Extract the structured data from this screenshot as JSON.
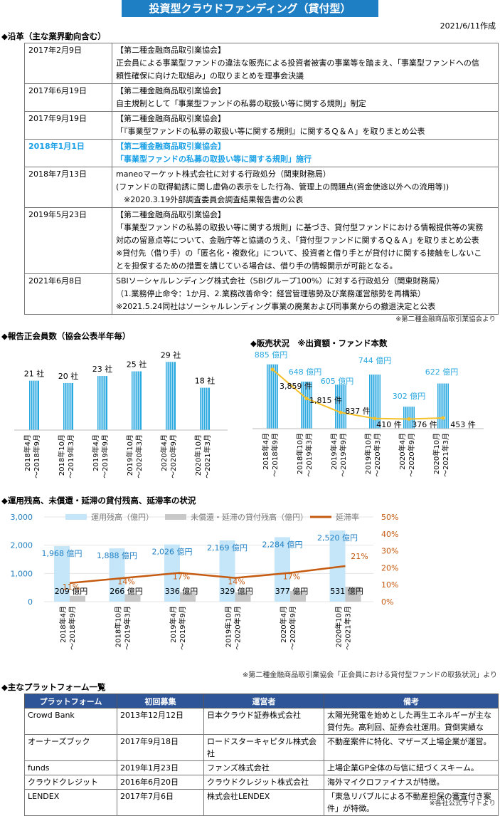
{
  "header": {
    "title": "投資型クラウドファンディング（貸付型）",
    "date": "2021/6/11作成"
  },
  "history": {
    "section_title": "◆沿革（主な業界動向含む）",
    "rows": [
      {
        "date": "2017年2月9日",
        "lines": [
          "【第二種金融商品取引業協会】",
          "正会員による事業型ファンドの違法な販売による投資者被害の事業等を踏まえ、「事業型ファンドへの信",
          "頼性確保に向けた取組み」の取りまとめを理事会決議"
        ]
      },
      {
        "date": "2017年6月19日",
        "lines": [
          "【第二種金融商品取引業協会】",
          "自主規制として「事業型ファンドの私募の取扱い等に関する規則」制定"
        ]
      },
      {
        "date": "2017年9月19日",
        "lines": [
          "【第二種金融商品取引業協会】",
          "「『事業型ファンドの私募の取扱い等に関する規則』に関するＱ＆Ａ」を取りまとめ公表"
        ]
      },
      {
        "date": "2018年1月1日",
        "lines": [
          "【第二種金融商品取引業協会】",
          "「事業型ファンドの私募の取扱い等に関する規則」施行"
        ],
        "highlight": true
      },
      {
        "date": "2018年7月13日",
        "lines": [
          "maneoマーケット株式会社に対する行政処分（関東財務局）",
          "(ファンドの取得勧誘に関し虚偽の表示をした行為、管理上の問題点(資金使途以外への流用等))",
          "　※2020.3.19外部調査委員会調査結果報告書の公表"
        ]
      },
      {
        "date": "2019年5月23日",
        "lines": [
          "【第二種金融商品取引業協会】",
          "「事業型ファンドの私募の取扱い等に関する規則」に基づき、貸付型ファンドにおける情報提供等の実務",
          "対応の留意点等について、金融庁等と協議のうえ、「貸付型ファンドに関するＱ＆Ａ」を取りまとめ公表",
          "※貸付先（借り手）の「匿名化・複数化」について、投資者と借り手とが貸付けに関する接触をしないこ",
          "とを担保するための措置を講じている場合は、借り手の情報開示が可能となる。"
        ]
      },
      {
        "date": "2021年6月8日",
        "lines": [
          "SBIソーシャルレンディング株式会社（SBIグループ100%）に対する行政処分（関東財務局）",
          "（1.業務停止命令：1か月、2.業務改善命令：経営管理態勢及び業務運営態勢を再構築）",
          "※2021.5.24同社はソーシャルレンディング事業の廃業および同事業からの撤退決定と公表"
        ]
      }
    ],
    "source": "※第二種金融商品取引業協会より"
  },
  "members_chart": {
    "section_title": "◆報告正会員数（協会公表半年毎）",
    "chart_data": {
      "type": "bar",
      "categories": [
        "2018年4月\n～2018年9月",
        "2018年10月\n～2019年3月",
        "2019年4月\n～2019年9月",
        "2019年10月\n～2020年3月",
        "2020年4月\n～2020年9月",
        "2020年10月\n～2021年3月"
      ],
      "values": [
        21,
        20,
        23,
        25,
        29,
        18
      ],
      "value_labels": [
        "21 社",
        "20 社",
        "23 社",
        "25 社",
        "29 社",
        "18 社"
      ],
      "bar_color": "#29A8E0"
    }
  },
  "sales_chart": {
    "section_title": "◆販売状況　※出資額・ファンド本数",
    "chart_data": {
      "type": "bar",
      "categories": [
        "2018年4月\n～2018年9月",
        "2018年10月\n～2019年3月",
        "2019年4月\n～2019年9月",
        "2019年10月\n～2020年3月",
        "2020年4月\n～2020年9月",
        "2020年10月\n～2021年3月"
      ],
      "series": [
        {
          "values": [
            885,
            648,
            605,
            744,
            302,
            622
          ],
          "labels": [
            "885 億円",
            "648 億円",
            "605 億円",
            "744 億円",
            "302 億円",
            "622 億円"
          ],
          "color": "#29A8E0"
        },
        {
          "values": [
            3859,
            1815,
            837,
            410,
            376,
            453
          ],
          "labels": [
            "3,859 件",
            "1,815 件",
            "837 件",
            "410 件",
            "376 件",
            "453 件"
          ],
          "color": "#F5C12B"
        }
      ]
    }
  },
  "balance_chart": {
    "section_title": "◆運用残高、未償還・延滞の貸付残高、延滞率の状況",
    "chart_data": {
      "type": "bar",
      "categories": [
        "2018年4月\n～2018年9月",
        "2018年10月\n～2019年3月",
        "2019年4月\n～2019年9月",
        "2019年10月\n～2020年3月",
        "2020年4月\n～2020年9月",
        "2020年10月\n～2021年3月"
      ],
      "series": [
        {
          "name": "運用残高（億円）",
          "values": [
            1968,
            1888,
            2026,
            2169,
            2284,
            2520
          ],
          "labels": [
            "1,968 億円",
            "1,888 億円",
            "2,026 億円",
            "2,169 億円",
            "2,284 億円",
            "2,520 億円"
          ],
          "color": "#C5E6F8"
        },
        {
          "name": "未償還・延滞の貸付残高（億円）",
          "values": [
            209,
            266,
            336,
            329,
            377,
            531
          ],
          "labels": [
            "209 億円",
            "266 億円",
            "336 億円",
            "329 億円",
            "377 億円",
            "531 億円"
          ],
          "color": "#C8C8C8"
        },
        {
          "name": "延滞率",
          "values": [
            11,
            14,
            17,
            14,
            17,
            21
          ],
          "labels": [
            "11%",
            "14%",
            "17%",
            "14%",
            "17%",
            "21%"
          ],
          "color": "#C55A11"
        }
      ],
      "y_ticks": [
        "0",
        "1,000",
        "2,000",
        "3,000"
      ],
      "y2_ticks": [
        "0%",
        "10%",
        "20%",
        "30%",
        "40%",
        "50%"
      ],
      "ylim": [
        0,
        3000
      ],
      "y2lim": [
        0,
        50
      ]
    },
    "source": "※第二種金融商品取引業協会「正会員における貸付型ファンドの取扱状況」より"
  },
  "platforms": {
    "section_title": "◆主なプラットフォーム一覧",
    "headers": [
      "プラットフォーム",
      "初回募集",
      "運営者",
      "備考"
    ],
    "rows": [
      {
        "name": "Crowd Bank",
        "date": "2013年12月12日",
        "operator": "日本クラウド証券株式会社",
        "note": "太陽光発電を始めとした再生エネルギーが主な貸付先。高利回、証券会社運用。貸倒実績な"
      },
      {
        "name": "オーナーズブック",
        "date": "2017年9月18日",
        "operator": "ロードスターキャピタル株式会社",
        "note": "不動産案件に特化、マザーズ上場企業が運営。"
      },
      {
        "name": "funds",
        "date": "2019年1月23日",
        "operator": "ファンズ株式会社",
        "note": "上場企業GP全体の与信に紐づくスキーム。"
      },
      {
        "name": "クラウドクレジット",
        "date": "2016年6月20日",
        "operator": "クラウドクレジット株式会社",
        "note": "海外マイクロファイナスが特徴。"
      },
      {
        "name": "LENDEX",
        "date": "2017年7月6日",
        "operator": "株式会社LENDEX",
        "note": "「東急リバブルによる不動産担保の審査付き案件」が特徴。"
      }
    ],
    "source": "※各社公式サイトより"
  }
}
